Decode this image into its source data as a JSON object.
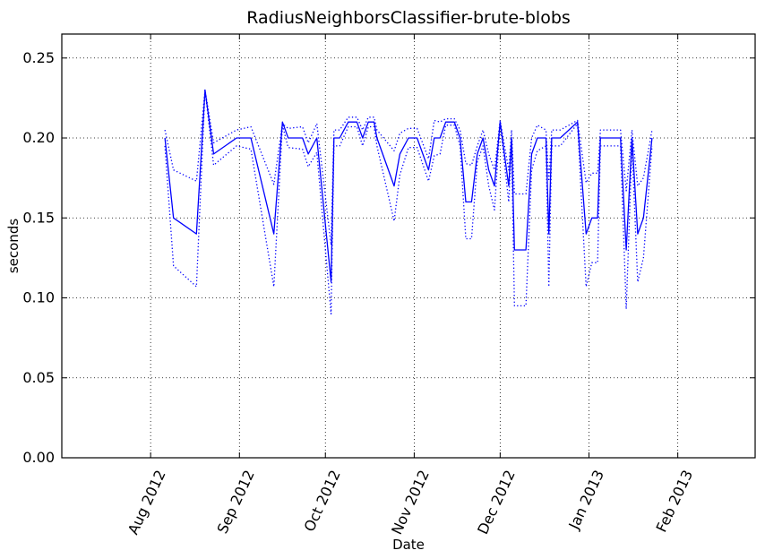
{
  "chart_data": {
    "type": "line",
    "title": "RadiusNeighborsClassifier-brute-blobs",
    "xlabel": "Date",
    "ylabel": "seconds",
    "xlim": [
      "2012-07-01",
      "2013-02-28"
    ],
    "ylim": [
      0.0,
      0.265
    ],
    "grid": true,
    "x_ticks": [
      {
        "date": "2012-08-01",
        "label": "Aug 2012"
      },
      {
        "date": "2012-09-01",
        "label": "Sep 2012"
      },
      {
        "date": "2012-10-01",
        "label": "Oct 2012"
      },
      {
        "date": "2012-11-01",
        "label": "Nov 2012"
      },
      {
        "date": "2012-12-01",
        "label": "Dec 2012"
      },
      {
        "date": "2013-01-01",
        "label": "Jan 2013"
      },
      {
        "date": "2013-02-01",
        "label": "Feb 2013"
      }
    ],
    "y_ticks": [
      {
        "value": 0.0,
        "label": "0.00"
      },
      {
        "value": 0.05,
        "label": "0.05"
      },
      {
        "value": 0.1,
        "label": "0.10"
      },
      {
        "value": 0.15,
        "label": "0.15"
      },
      {
        "value": 0.2,
        "label": "0.20"
      },
      {
        "value": 0.25,
        "label": "0.25"
      }
    ],
    "series": [
      {
        "role": "mean",
        "style": "solid",
        "color": "#0000ff",
        "points": [
          [
            "2012-08-06",
            0.2
          ],
          [
            "2012-08-09",
            0.15
          ],
          [
            "2012-08-17",
            0.14
          ],
          [
            "2012-08-20",
            0.23
          ],
          [
            "2012-08-23",
            0.19
          ],
          [
            "2012-08-31",
            0.2
          ],
          [
            "2012-09-05",
            0.2
          ],
          [
            "2012-09-13",
            0.14
          ],
          [
            "2012-09-16",
            0.21
          ],
          [
            "2012-09-18",
            0.2
          ],
          [
            "2012-09-23",
            0.2
          ],
          [
            "2012-09-25",
            0.19
          ],
          [
            "2012-09-28",
            0.2
          ],
          [
            "2012-10-03",
            0.11
          ],
          [
            "2012-10-04",
            0.2
          ],
          [
            "2012-10-06",
            0.2
          ],
          [
            "2012-10-09",
            0.21
          ],
          [
            "2012-10-12",
            0.21
          ],
          [
            "2012-10-14",
            0.2
          ],
          [
            "2012-10-16",
            0.21
          ],
          [
            "2012-10-18",
            0.21
          ],
          [
            "2012-10-19",
            0.2
          ],
          [
            "2012-10-25",
            0.17
          ],
          [
            "2012-10-27",
            0.19
          ],
          [
            "2012-10-30",
            0.2
          ],
          [
            "2012-11-02",
            0.2
          ],
          [
            "2012-11-06",
            0.18
          ],
          [
            "2012-11-08",
            0.2
          ],
          [
            "2012-11-10",
            0.2
          ],
          [
            "2012-11-12",
            0.21
          ],
          [
            "2012-11-15",
            0.21
          ],
          [
            "2012-11-17",
            0.2
          ],
          [
            "2012-11-19",
            0.16
          ],
          [
            "2012-11-21",
            0.16
          ],
          [
            "2012-11-23",
            0.19
          ],
          [
            "2012-11-25",
            0.2
          ],
          [
            "2012-11-27",
            0.18
          ],
          [
            "2012-11-29",
            0.17
          ],
          [
            "2012-12-01",
            0.21
          ],
          [
            "2012-12-04",
            0.17
          ],
          [
            "2012-12-05",
            0.2
          ],
          [
            "2012-12-06",
            0.13
          ],
          [
            "2012-12-10",
            0.13
          ],
          [
            "2012-12-12",
            0.19
          ],
          [
            "2012-12-14",
            0.2
          ],
          [
            "2012-12-17",
            0.2
          ],
          [
            "2012-12-18",
            0.14
          ],
          [
            "2012-12-19",
            0.2
          ],
          [
            "2012-12-22",
            0.2
          ],
          [
            "2012-12-28",
            0.21
          ],
          [
            "2012-12-31",
            0.14
          ],
          [
            "2013-01-02",
            0.15
          ],
          [
            "2013-01-04",
            0.15
          ],
          [
            "2013-01-05",
            0.2
          ],
          [
            "2013-01-12",
            0.2
          ],
          [
            "2013-01-14",
            0.13
          ],
          [
            "2013-01-16",
            0.2
          ],
          [
            "2013-01-18",
            0.14
          ],
          [
            "2013-01-20",
            0.15
          ],
          [
            "2013-01-23",
            0.2
          ]
        ]
      },
      {
        "role": "upper",
        "style": "dotted",
        "color": "#0000ff",
        "points": [
          [
            "2012-08-06",
            0.205
          ],
          [
            "2012-08-09",
            0.18
          ],
          [
            "2012-08-17",
            0.173
          ],
          [
            "2012-08-20",
            0.23
          ],
          [
            "2012-08-23",
            0.197
          ],
          [
            "2012-08-31",
            0.205
          ],
          [
            "2012-09-05",
            0.207
          ],
          [
            "2012-09-13",
            0.171
          ],
          [
            "2012-09-16",
            0.209
          ],
          [
            "2012-09-18",
            0.206
          ],
          [
            "2012-09-23",
            0.207
          ],
          [
            "2012-09-25",
            0.197
          ],
          [
            "2012-09-28",
            0.209
          ],
          [
            "2012-10-03",
            0.133
          ],
          [
            "2012-10-04",
            0.205
          ],
          [
            "2012-10-06",
            0.205
          ],
          [
            "2012-10-09",
            0.213
          ],
          [
            "2012-10-12",
            0.213
          ],
          [
            "2012-10-14",
            0.205
          ],
          [
            "2012-10-16",
            0.213
          ],
          [
            "2012-10-18",
            0.213
          ],
          [
            "2012-10-19",
            0.205
          ],
          [
            "2012-10-25",
            0.192
          ],
          [
            "2012-10-27",
            0.203
          ],
          [
            "2012-10-30",
            0.206
          ],
          [
            "2012-11-02",
            0.206
          ],
          [
            "2012-11-06",
            0.187
          ],
          [
            "2012-11-08",
            0.211
          ],
          [
            "2012-11-10",
            0.21
          ],
          [
            "2012-11-12",
            0.212
          ],
          [
            "2012-11-15",
            0.212
          ],
          [
            "2012-11-17",
            0.205
          ],
          [
            "2012-11-19",
            0.184
          ],
          [
            "2012-11-21",
            0.183
          ],
          [
            "2012-11-23",
            0.195
          ],
          [
            "2012-11-25",
            0.205
          ],
          [
            "2012-11-27",
            0.19
          ],
          [
            "2012-11-29",
            0.18
          ],
          [
            "2012-12-01",
            0.211
          ],
          [
            "2012-12-04",
            0.18
          ],
          [
            "2012-12-05",
            0.205
          ],
          [
            "2012-12-06",
            0.165
          ],
          [
            "2012-12-10",
            0.165
          ],
          [
            "2012-12-12",
            0.2
          ],
          [
            "2012-12-14",
            0.208
          ],
          [
            "2012-12-17",
            0.205
          ],
          [
            "2012-12-18",
            0.173
          ],
          [
            "2012-12-19",
            0.205
          ],
          [
            "2012-12-22",
            0.205
          ],
          [
            "2012-12-28",
            0.211
          ],
          [
            "2012-12-31",
            0.172
          ],
          [
            "2013-01-02",
            0.178
          ],
          [
            "2013-01-04",
            0.178
          ],
          [
            "2013-01-05",
            0.205
          ],
          [
            "2013-01-12",
            0.205
          ],
          [
            "2013-01-14",
            0.167
          ],
          [
            "2013-01-16",
            0.205
          ],
          [
            "2013-01-18",
            0.17
          ],
          [
            "2013-01-20",
            0.175
          ],
          [
            "2013-01-23",
            0.205
          ]
        ]
      },
      {
        "role": "lower",
        "style": "dotted",
        "color": "#0000ff",
        "points": [
          [
            "2012-08-06",
            0.195
          ],
          [
            "2012-08-09",
            0.12
          ],
          [
            "2012-08-17",
            0.107
          ],
          [
            "2012-08-20",
            0.23
          ],
          [
            "2012-08-23",
            0.183
          ],
          [
            "2012-08-31",
            0.195
          ],
          [
            "2012-09-05",
            0.193
          ],
          [
            "2012-09-13",
            0.107
          ],
          [
            "2012-09-16",
            0.208
          ],
          [
            "2012-09-18",
            0.194
          ],
          [
            "2012-09-23",
            0.193
          ],
          [
            "2012-09-25",
            0.182
          ],
          [
            "2012-09-28",
            0.191
          ],
          [
            "2012-10-03",
            0.09
          ],
          [
            "2012-10-04",
            0.195
          ],
          [
            "2012-10-06",
            0.195
          ],
          [
            "2012-10-09",
            0.207
          ],
          [
            "2012-10-12",
            0.207
          ],
          [
            "2012-10-14",
            0.195
          ],
          [
            "2012-10-16",
            0.207
          ],
          [
            "2012-10-18",
            0.207
          ],
          [
            "2012-10-19",
            0.195
          ],
          [
            "2012-10-25",
            0.148
          ],
          [
            "2012-10-27",
            0.177
          ],
          [
            "2012-10-30",
            0.194
          ],
          [
            "2012-11-02",
            0.194
          ],
          [
            "2012-11-06",
            0.173
          ],
          [
            "2012-11-08",
            0.189
          ],
          [
            "2012-11-10",
            0.19
          ],
          [
            "2012-11-12",
            0.208
          ],
          [
            "2012-11-15",
            0.208
          ],
          [
            "2012-11-17",
            0.195
          ],
          [
            "2012-11-19",
            0.137
          ],
          [
            "2012-11-21",
            0.137
          ],
          [
            "2012-11-23",
            0.185
          ],
          [
            "2012-11-25",
            0.195
          ],
          [
            "2012-11-27",
            0.17
          ],
          [
            "2012-11-29",
            0.155
          ],
          [
            "2012-12-01",
            0.209
          ],
          [
            "2012-12-04",
            0.16
          ],
          [
            "2012-12-05",
            0.195
          ],
          [
            "2012-12-06",
            0.095
          ],
          [
            "2012-12-10",
            0.095
          ],
          [
            "2012-12-12",
            0.18
          ],
          [
            "2012-12-14",
            0.192
          ],
          [
            "2012-12-17",
            0.195
          ],
          [
            "2012-12-18",
            0.107
          ],
          [
            "2012-12-19",
            0.195
          ],
          [
            "2012-12-22",
            0.195
          ],
          [
            "2012-12-28",
            0.209
          ],
          [
            "2012-12-31",
            0.107
          ],
          [
            "2013-01-02",
            0.122
          ],
          [
            "2013-01-04",
            0.122
          ],
          [
            "2013-01-05",
            0.195
          ],
          [
            "2013-01-12",
            0.195
          ],
          [
            "2013-01-14",
            0.093
          ],
          [
            "2013-01-16",
            0.195
          ],
          [
            "2013-01-18",
            0.11
          ],
          [
            "2013-01-20",
            0.125
          ],
          [
            "2013-01-23",
            0.195
          ]
        ]
      }
    ]
  }
}
